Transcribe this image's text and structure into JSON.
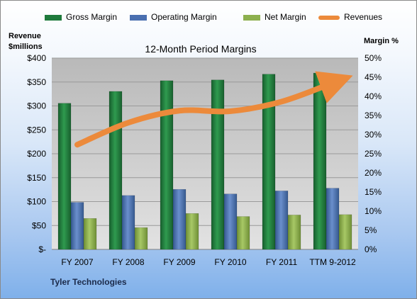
{
  "legend": {
    "gross": "Gross Margin",
    "operating": "Operating Margin",
    "net": "Net Margin",
    "revenues": "Revenues"
  },
  "axis_titles": {
    "left_line1": "Revenue",
    "left_line2": "$millions",
    "right": "Margin %"
  },
  "company": "Tyler Technologies",
  "colors": {
    "gross": "#1f7a3c",
    "operating": "#4a6fb0",
    "net": "#8db04e",
    "revenues": "#ec8a3b",
    "plot_bg": "#cdcdcd"
  },
  "chart_data": {
    "type": "bar",
    "title": "12-Month Period Margins",
    "categories": [
      "FY 2007",
      "FY 2008",
      "FY 2009",
      "FY 2010",
      "FY 2011",
      "TTM 9-2012"
    ],
    "left_axis": {
      "ticks": [
        "$-",
        "$50",
        "$100",
        "$150",
        "$200",
        "$250",
        "$300",
        "$350",
        "$400"
      ],
      "ylim": [
        0,
        400
      ]
    },
    "right_axis": {
      "ticks": [
        "0%",
        "5%",
        "10%",
        "15%",
        "20%",
        "25%",
        "30%",
        "35%",
        "40%",
        "45%",
        "50%"
      ],
      "ylim": [
        0,
        50
      ]
    },
    "series": [
      {
        "name": "Gross Margin",
        "axis": "right",
        "values": [
          38.2,
          41.3,
          44.1,
          44.3,
          45.8,
          46.1
        ]
      },
      {
        "name": "Operating Margin",
        "axis": "right",
        "values": [
          12.3,
          14.1,
          15.7,
          14.5,
          15.3,
          16.0
        ]
      },
      {
        "name": "Net Margin",
        "axis": "right",
        "values": [
          8.1,
          5.7,
          9.4,
          8.6,
          9.0,
          9.1
        ]
      },
      {
        "name": "Revenues",
        "axis": "left",
        "type": "line",
        "values": [
          219,
          265,
          290,
          289,
          309,
          348
        ]
      }
    ],
    "grid": true,
    "legend_position": "top"
  }
}
